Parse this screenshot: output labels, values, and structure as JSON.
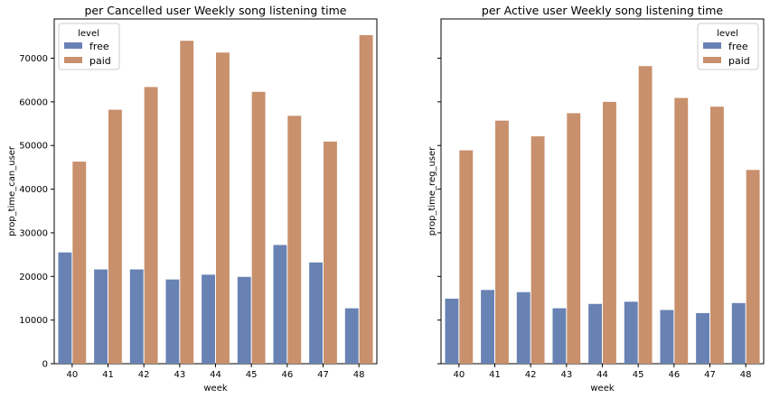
{
  "chart_data": [
    {
      "type": "bar",
      "title": "per Cancelled user Weekly song listening time",
      "xlabel": "week",
      "ylabel": "prop_time_can_user",
      "categories": [
        "40",
        "41",
        "42",
        "43",
        "44",
        "45",
        "46",
        "47",
        "48"
      ],
      "ylim": [
        0,
        79000
      ],
      "yticks": [
        0,
        10000,
        20000,
        30000,
        40000,
        50000,
        60000,
        70000
      ],
      "legend": {
        "title": "level",
        "placement": "top-left"
      },
      "series": [
        {
          "name": "free",
          "color": "#6882b3",
          "values": [
            25500,
            21600,
            21600,
            19300,
            20400,
            19900,
            27200,
            23200,
            12700
          ]
        },
        {
          "name": "paid",
          "color": "#c8906c",
          "values": [
            46300,
            58200,
            63400,
            74000,
            71300,
            62300,
            56800,
            50900,
            75300
          ]
        }
      ]
    },
    {
      "type": "bar",
      "title": "per Active user Weekly song listening time",
      "xlabel": "week",
      "ylabel": "prop_time_reg_user",
      "categories": [
        "40",
        "41",
        "42",
        "43",
        "44",
        "45",
        "46",
        "47",
        "48"
      ],
      "ylim": [
        0,
        79000
      ],
      "yticks": [
        0,
        10000,
        20000,
        30000,
        40000,
        50000,
        60000,
        70000
      ],
      "legend": {
        "title": "level",
        "placement": "top-right"
      },
      "series": [
        {
          "name": "free",
          "color": "#6882b3",
          "values": [
            14900,
            16900,
            16400,
            12700,
            13700,
            14200,
            12300,
            11600,
            13900
          ]
        },
        {
          "name": "paid",
          "color": "#c8906c",
          "values": [
            48900,
            55700,
            52100,
            57400,
            60000,
            68200,
            60900,
            58900,
            44400
          ]
        }
      ]
    }
  ]
}
